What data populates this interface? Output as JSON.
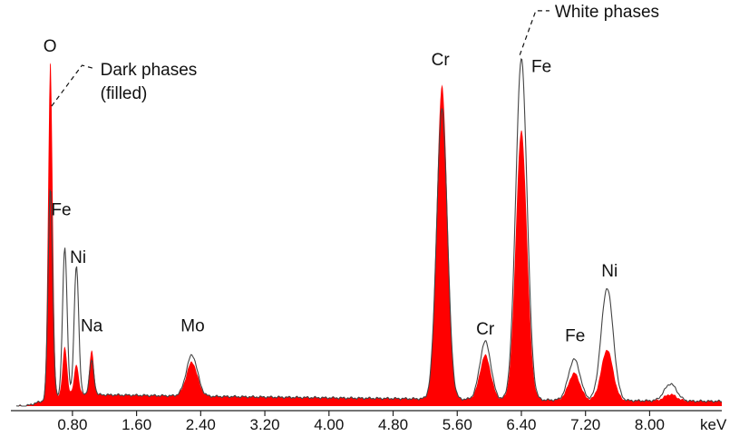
{
  "chart_data": {
    "type": "area",
    "xunit": "keV",
    "xlim": [
      0.1,
      8.9
    ],
    "x_ticks": [
      "0.80",
      "1.60",
      "2.40",
      "3.20",
      "4.00",
      "4.80",
      "5.60",
      "6.40",
      "7.20",
      "8.00"
    ],
    "x_tick_values": [
      0.8,
      1.6,
      2.4,
      3.2,
      4.0,
      4.8,
      5.6,
      6.4,
      7.2,
      8.0
    ],
    "ylim": [
      0,
      100
    ],
    "grid": false,
    "colors": {
      "dark_fill": "#ff0000",
      "white_line": "#444444"
    },
    "series": [
      {
        "name": "Dark phases (filled)",
        "style": "filled",
        "peaks": [
          {
            "label": "O",
            "x": 0.525,
            "y": 100
          },
          {
            "label": "Fe",
            "x": 0.705,
            "y": 14
          },
          {
            "label": "Ni",
            "x": 0.85,
            "y": 9
          },
          {
            "label": "Na",
            "x": 1.04,
            "y": 13
          },
          {
            "label": "Mo",
            "x": 2.29,
            "y": 10
          },
          {
            "label": "Cr",
            "x": 5.41,
            "y": 92
          },
          {
            "label": "Cr",
            "x": 5.95,
            "y": 13
          },
          {
            "label": "Fe",
            "x": 6.4,
            "y": 79
          },
          {
            "label": "Fe",
            "x": 7.06,
            "y": 8
          },
          {
            "label": "Ni",
            "x": 7.47,
            "y": 15
          },
          {
            "label": "",
            "x": 8.26,
            "y": 2
          }
        ]
      },
      {
        "name": "White phases",
        "style": "line",
        "peaks": [
          {
            "label": "O",
            "x": 0.525,
            "y": 62
          },
          {
            "label": "Fe",
            "x": 0.705,
            "y": 43
          },
          {
            "label": "Ni",
            "x": 0.85,
            "y": 38
          },
          {
            "label": "Na",
            "x": 1.04,
            "y": 10
          },
          {
            "label": "Mo",
            "x": 2.29,
            "y": 12
          },
          {
            "label": "Cr",
            "x": 5.41,
            "y": 85
          },
          {
            "label": "Cr",
            "x": 5.95,
            "y": 17
          },
          {
            "label": "Fe",
            "x": 6.4,
            "y": 100
          },
          {
            "label": "Fe",
            "x": 7.06,
            "y": 12
          },
          {
            "label": "Ni",
            "x": 7.47,
            "y": 33
          },
          {
            "label": "",
            "x": 8.26,
            "y": 5
          }
        ]
      }
    ],
    "annotations": [
      {
        "text": "O",
        "x": 0.52,
        "y": 104
      },
      {
        "text": "Fe",
        "x": 0.66,
        "y": 56
      },
      {
        "text": "Ni",
        "x": 0.87,
        "y": 42
      },
      {
        "text": "Na",
        "x": 1.04,
        "y": 22
      },
      {
        "text": "Mo",
        "x": 2.3,
        "y": 22
      },
      {
        "text": "Cr",
        "x": 5.39,
        "y": 100
      },
      {
        "text": "Cr",
        "x": 5.95,
        "y": 21
      },
      {
        "text": "Fe",
        "x": 6.65,
        "y": 98
      },
      {
        "text": "Fe",
        "x": 7.07,
        "y": 19
      },
      {
        "text": "Ni",
        "x": 7.5,
        "y": 38
      }
    ],
    "callouts": [
      {
        "text": [
          "Dark phases",
          "(filled)"
        ],
        "target": [
          0.54,
          88
        ],
        "elbow": [
          0.92,
          100
        ],
        "anchor": [
          1.08,
          99
        ]
      },
      {
        "text": [
          "White phases"
        ],
        "target": [
          6.38,
          103
        ],
        "elbow": [
          6.58,
          116
        ],
        "anchor": [
          6.75,
          116
        ]
      }
    ]
  }
}
